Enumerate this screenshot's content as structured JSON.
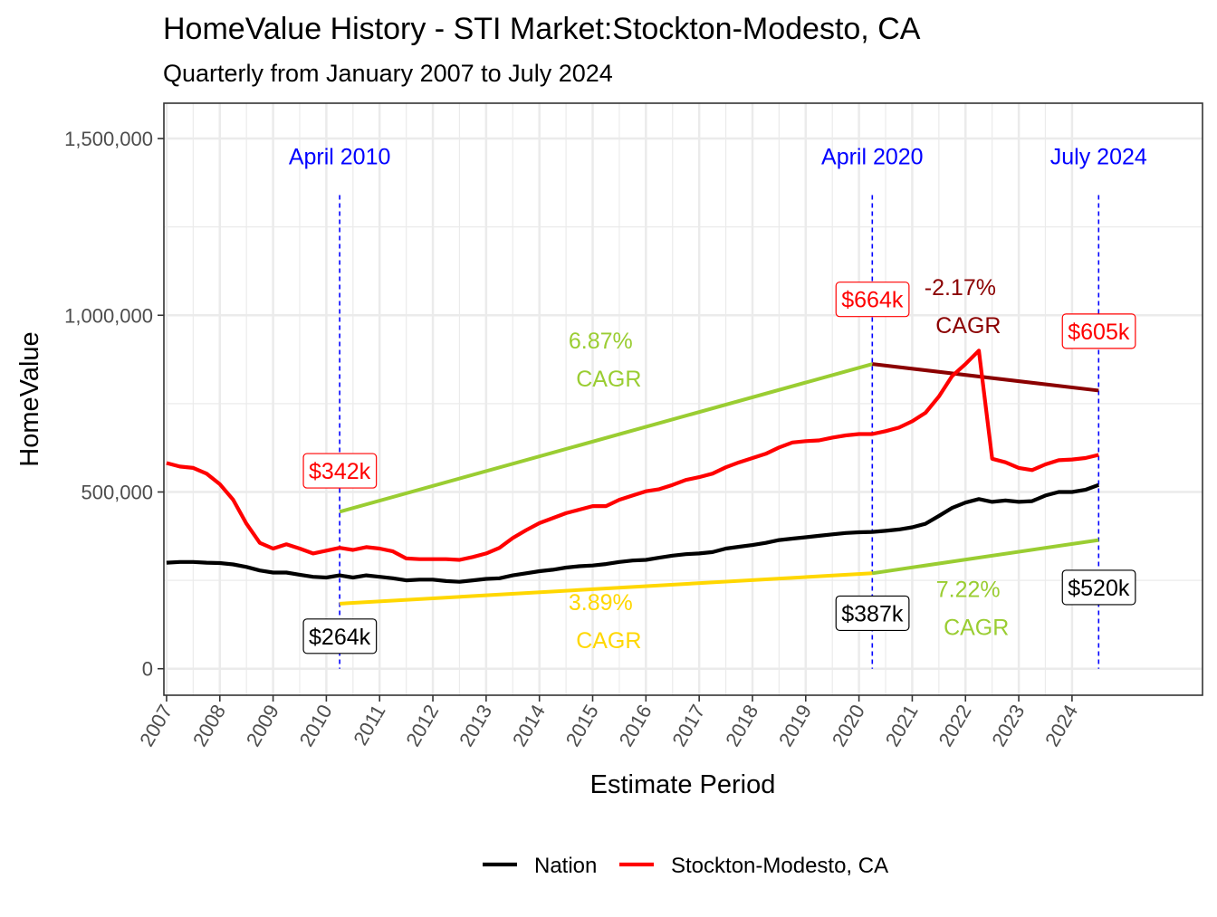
{
  "chart_data": {
    "type": "line",
    "title": "HomeValue History - STI Market:Stockton-Modesto, CA",
    "subtitle": "Quarterly from January 2007 to July 2024",
    "xlabel": "Estimate Period",
    "ylabel": "HomeValue",
    "xlim": [
      2006.95,
      2026.45
    ],
    "ylim": [
      -75000,
      1600000
    ],
    "x_ticks": [
      2007,
      2008,
      2009,
      2010,
      2011,
      2012,
      2013,
      2014,
      2015,
      2016,
      2017,
      2018,
      2019,
      2020,
      2021,
      2022,
      2023,
      2024
    ],
    "x_tick_labels": [
      "2007",
      "2008",
      "2009",
      "2010",
      "2011",
      "2012",
      "2013",
      "2014",
      "2015",
      "2016",
      "2017",
      "2018",
      "2019",
      "2020",
      "2021",
      "2022",
      "2023",
      "2024"
    ],
    "y_ticks": [
      0,
      500000,
      1000000,
      1500000
    ],
    "y_tick_labels": [
      "0",
      "500,000",
      "1,000,000",
      "1,500,000"
    ],
    "grid": true,
    "legend_position": "bottom",
    "series": [
      {
        "name": "Nation",
        "color": "#000000",
        "points": [
          [
            2007.0,
            300000
          ],
          [
            2007.25,
            302000
          ],
          [
            2007.5,
            302000
          ],
          [
            2007.75,
            300000
          ],
          [
            2008.0,
            299000
          ],
          [
            2008.25,
            295000
          ],
          [
            2008.5,
            288000
          ],
          [
            2008.75,
            278000
          ],
          [
            2009.0,
            272000
          ],
          [
            2009.25,
            272000
          ],
          [
            2009.5,
            266000
          ],
          [
            2009.75,
            260000
          ],
          [
            2010.0,
            258000
          ],
          [
            2010.25,
            264000
          ],
          [
            2010.5,
            258000
          ],
          [
            2010.75,
            264000
          ],
          [
            2011.0,
            260000
          ],
          [
            2011.25,
            256000
          ],
          [
            2011.5,
            250000
          ],
          [
            2011.75,
            252000
          ],
          [
            2012.0,
            252000
          ],
          [
            2012.25,
            248000
          ],
          [
            2012.5,
            246000
          ],
          [
            2012.75,
            250000
          ],
          [
            2013.0,
            254000
          ],
          [
            2013.25,
            256000
          ],
          [
            2013.5,
            264000
          ],
          [
            2013.75,
            270000
          ],
          [
            2014.0,
            276000
          ],
          [
            2014.25,
            280000
          ],
          [
            2014.5,
            286000
          ],
          [
            2014.75,
            290000
          ],
          [
            2015.0,
            292000
          ],
          [
            2015.25,
            296000
          ],
          [
            2015.5,
            302000
          ],
          [
            2015.75,
            306000
          ],
          [
            2016.0,
            308000
          ],
          [
            2016.25,
            314000
          ],
          [
            2016.5,
            320000
          ],
          [
            2016.75,
            324000
          ],
          [
            2017.0,
            326000
          ],
          [
            2017.25,
            330000
          ],
          [
            2017.5,
            340000
          ],
          [
            2017.75,
            345000
          ],
          [
            2018.0,
            350000
          ],
          [
            2018.25,
            356000
          ],
          [
            2018.5,
            364000
          ],
          [
            2018.75,
            368000
          ],
          [
            2019.0,
            372000
          ],
          [
            2019.25,
            376000
          ],
          [
            2019.5,
            380000
          ],
          [
            2019.75,
            384000
          ],
          [
            2020.0,
            386000
          ],
          [
            2020.25,
            387000
          ],
          [
            2020.5,
            390000
          ],
          [
            2020.75,
            394000
          ],
          [
            2021.0,
            400000
          ],
          [
            2021.25,
            410000
          ],
          [
            2021.5,
            432000
          ],
          [
            2021.75,
            455000
          ],
          [
            2022.0,
            470000
          ],
          [
            2022.25,
            480000
          ],
          [
            2022.5,
            472000
          ],
          [
            2022.75,
            476000
          ],
          [
            2023.0,
            472000
          ],
          [
            2023.25,
            474000
          ],
          [
            2023.5,
            490000
          ],
          [
            2023.75,
            500000
          ],
          [
            2024.0,
            500000
          ],
          [
            2024.25,
            506000
          ],
          [
            2024.5,
            520000
          ]
        ]
      },
      {
        "name": "Stockton-Modesto, CA",
        "color": "#ff0000",
        "points": [
          [
            2007.0,
            582000
          ],
          [
            2007.25,
            572000
          ],
          [
            2007.5,
            568000
          ],
          [
            2007.75,
            552000
          ],
          [
            2008.0,
            522000
          ],
          [
            2008.25,
            478000
          ],
          [
            2008.5,
            410000
          ],
          [
            2008.75,
            356000
          ],
          [
            2009.0,
            340000
          ],
          [
            2009.25,
            352000
          ],
          [
            2009.5,
            340000
          ],
          [
            2009.75,
            326000
          ],
          [
            2010.0,
            334000
          ],
          [
            2010.25,
            342000
          ],
          [
            2010.5,
            336000
          ],
          [
            2010.75,
            344000
          ],
          [
            2011.0,
            340000
          ],
          [
            2011.25,
            332000
          ],
          [
            2011.5,
            312000
          ],
          [
            2011.75,
            310000
          ],
          [
            2012.0,
            310000
          ],
          [
            2012.25,
            310000
          ],
          [
            2012.5,
            308000
          ],
          [
            2012.75,
            316000
          ],
          [
            2013.0,
            326000
          ],
          [
            2013.25,
            342000
          ],
          [
            2013.5,
            370000
          ],
          [
            2013.75,
            392000
          ],
          [
            2014.0,
            412000
          ],
          [
            2014.25,
            426000
          ],
          [
            2014.5,
            440000
          ],
          [
            2014.75,
            450000
          ],
          [
            2015.0,
            460000
          ],
          [
            2015.25,
            460000
          ],
          [
            2015.5,
            478000
          ],
          [
            2015.75,
            490000
          ],
          [
            2016.0,
            502000
          ],
          [
            2016.25,
            508000
          ],
          [
            2016.5,
            520000
          ],
          [
            2016.75,
            534000
          ],
          [
            2017.0,
            542000
          ],
          [
            2017.25,
            552000
          ],
          [
            2017.5,
            570000
          ],
          [
            2017.75,
            584000
          ],
          [
            2018.0,
            596000
          ],
          [
            2018.25,
            608000
          ],
          [
            2018.5,
            626000
          ],
          [
            2018.75,
            640000
          ],
          [
            2019.0,
            644000
          ],
          [
            2019.25,
            646000
          ],
          [
            2019.5,
            654000
          ],
          [
            2019.75,
            660000
          ],
          [
            2020.0,
            664000
          ],
          [
            2020.25,
            664000
          ],
          [
            2020.5,
            672000
          ],
          [
            2020.75,
            682000
          ],
          [
            2021.0,
            700000
          ],
          [
            2021.25,
            724000
          ],
          [
            2021.5,
            770000
          ],
          [
            2021.75,
            828000
          ],
          [
            2022.0,
            862000
          ],
          [
            2022.25,
            900000
          ],
          [
            2022.5,
            594000
          ],
          [
            2022.75,
            584000
          ],
          [
            2023.0,
            568000
          ],
          [
            2023.25,
            562000
          ],
          [
            2023.5,
            578000
          ],
          [
            2023.75,
            590000
          ],
          [
            2024.0,
            592000
          ],
          [
            2024.25,
            596000
          ],
          [
            2024.5,
            605000
          ]
        ]
      }
    ],
    "cagr_segments": [
      {
        "color": "#ffd700",
        "from": [
          2010.25,
          184000
        ],
        "to": [
          2020.25,
          270000
        ]
      },
      {
        "color": "#9acd32",
        "from": [
          2020.25,
          270000
        ],
        "to": [
          2024.5,
          364000
        ]
      },
      {
        "color": "#9acd32",
        "from": [
          2010.25,
          444000
        ],
        "to": [
          2020.25,
          862000
        ]
      },
      {
        "color": "#8b0000",
        "from": [
          2020.25,
          862000
        ],
        "to": [
          2024.5,
          787000
        ]
      }
    ],
    "cagr_labels": [
      {
        "rate": "3.89%",
        "suffix": "CAGR",
        "color": "#ffd700",
        "x": 2015.15,
        "y": 145000
      },
      {
        "rate": "7.22%",
        "suffix": "CAGR",
        "color": "#9acd32",
        "x": 2022.05,
        "y": 182000
      },
      {
        "rate": "6.87%",
        "suffix": "CAGR",
        "color": "#9acd32",
        "x": 2015.15,
        "y": 885000
      },
      {
        "rate": "-2.17%",
        "suffix": "CAGR",
        "color": "#8b0000",
        "x": 2021.9,
        "y": 1037000
      }
    ],
    "vertical_markers": [
      {
        "x": 2010.25,
        "label": "April 2010"
      },
      {
        "x": 2020.25,
        "label": "April 2020"
      },
      {
        "x": 2024.5,
        "label": "July 2024"
      }
    ],
    "value_labels": [
      {
        "text": "$342k",
        "color": "#ff0000",
        "x": 2010.25,
        "y": 560000
      },
      {
        "text": "$664k",
        "color": "#ff0000",
        "x": 2020.25,
        "y": 1045000
      },
      {
        "text": "$605k",
        "color": "#ff0000",
        "x": 2024.5,
        "y": 955000
      },
      {
        "text": "$264k",
        "color": "#000000",
        "x": 2010.25,
        "y": 92000
      },
      {
        "text": "$387k",
        "color": "#000000",
        "x": 2020.25,
        "y": 157000
      },
      {
        "text": "$520k",
        "color": "#000000",
        "x": 2024.5,
        "y": 230000
      }
    ]
  }
}
